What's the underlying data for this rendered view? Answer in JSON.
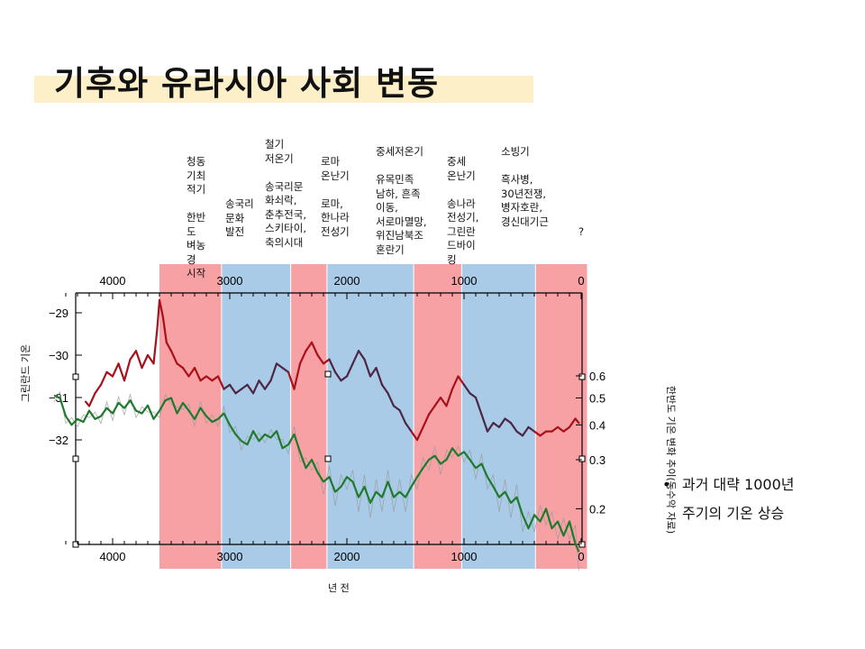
{
  "title": "기후와 유라시아 사회 변동",
  "eras": [
    {
      "id": "era-bronze-cold",
      "label": "청동\n기최\n적기\n\n한반\n도\n벼농\n경\n시작"
    },
    {
      "id": "era-songguk",
      "label": "송국리\n문화\n발전"
    },
    {
      "id": "era-iron-cold",
      "label": "철기\n저온기\n\n송국리문\n화쇠락,\n춘추전국,\n스키타이,\n축의시대"
    },
    {
      "id": "era-roman-warm",
      "label": "로마\n온난기\n\n로마,\n한나라\n전성기"
    },
    {
      "id": "era-medieval-cold",
      "label": "중세저온기\n\n유목민족\n남하, 흔족\n이동,\n서로마멸망,\n위진남북조\n혼란기"
    },
    {
      "id": "era-medieval-warm",
      "label": "중세\n온난기\n\n송나라\n전성기,\n그린란\n드바이\n킹"
    },
    {
      "id": "era-little-ice",
      "label": "소빙기\n\n흑사병,\n30년전쟁,\n병자호란,\n경신대기근"
    },
    {
      "id": "era-future",
      "label": "?"
    }
  ],
  "axis": {
    "left_label": "그린란드 기온",
    "right_label": "한반도 기온 변화 추이(동수악 자료)",
    "x_label": "년 전"
  },
  "notes": [
    "과거 대략 1000년",
    "주기의 기온 상승"
  ],
  "colors": {
    "warm": "#f7a1a4",
    "cold": "#a9cbe8",
    "greenland_warm": "#a8101a",
    "greenland_cold": "#4b2745",
    "korea": "#1f7a2e",
    "korea_raw": "#9a9a9a"
  },
  "chart_data": {
    "type": "line",
    "x_unit": "years before present",
    "xlim": [
      4500,
      -50
    ],
    "x_ticks": [
      4000,
      3000,
      2000,
      1000,
      0
    ],
    "left_axis": {
      "ylim": [
        -32.9,
        -28.6
      ],
      "ticks": [
        -29,
        -30,
        -31,
        -32
      ]
    },
    "right_axis": {
      "ticks": [
        0.6,
        0.5,
        0.4,
        0.3,
        0.2
      ]
    },
    "periods": [
      {
        "kind": "warm",
        "from": 3600,
        "to": 3070
      },
      {
        "kind": "cold",
        "from": 3070,
        "to": 2480
      },
      {
        "kind": "warm",
        "from": 2480,
        "to": 2170
      },
      {
        "kind": "cold",
        "from": 2170,
        "to": 1430
      },
      {
        "kind": "warm",
        "from": 1430,
        "to": 1020
      },
      {
        "kind": "cold",
        "from": 1020,
        "to": 390
      },
      {
        "kind": "warm",
        "from": 390,
        "to": -50
      }
    ],
    "series": [
      {
        "id": "greenland",
        "x": [
          4230,
          4200,
          4150,
          4100,
          4050,
          4000,
          3950,
          3900,
          3850,
          3800,
          3750,
          3700,
          3650,
          3620,
          3600,
          3570,
          3540,
          3500,
          3450,
          3400,
          3350,
          3300,
          3250,
          3200,
          3150,
          3100,
          3050,
          3000,
          2950,
          2900,
          2850,
          2800,
          2750,
          2700,
          2650,
          2600,
          2550,
          2500,
          2450,
          2400,
          2350,
          2300,
          2250,
          2200,
          2150,
          2100,
          2050,
          2000,
          1950,
          1900,
          1850,
          1800,
          1750,
          1700,
          1650,
          1600,
          1550,
          1500,
          1450,
          1400,
          1350,
          1300,
          1250,
          1200,
          1150,
          1100,
          1050,
          1000,
          950,
          900,
          850,
          800,
          750,
          700,
          650,
          600,
          550,
          500,
          450,
          400,
          350,
          300,
          250,
          200,
          150,
          100,
          50,
          20
        ],
        "y": [
          -31.1,
          -31.2,
          -30.9,
          -30.7,
          -30.4,
          -30.5,
          -30.2,
          -30.6,
          -30.1,
          -29.9,
          -30.3,
          -30.0,
          -30.2,
          -29.4,
          -28.7,
          -29.1,
          -29.7,
          -29.9,
          -30.2,
          -30.3,
          -30.5,
          -30.3,
          -30.6,
          -30.5,
          -30.6,
          -30.5,
          -30.8,
          -30.7,
          -30.9,
          -30.8,
          -30.7,
          -30.9,
          -30.6,
          -30.8,
          -30.6,
          -30.2,
          -30.3,
          -30.4,
          -30.8,
          -30.2,
          -29.9,
          -29.7,
          -30.0,
          -30.2,
          -30.1,
          -30.4,
          -30.6,
          -30.5,
          -30.2,
          -29.9,
          -30.1,
          -30.5,
          -30.3,
          -30.7,
          -30.9,
          -31.2,
          -31.3,
          -31.6,
          -31.8,
          -32.0,
          -31.7,
          -31.4,
          -31.2,
          -31.0,
          -31.2,
          -30.8,
          -30.5,
          -30.7,
          -30.9,
          -31.0,
          -31.4,
          -31.8,
          -31.6,
          -31.7,
          -31.5,
          -31.6,
          -31.8,
          -31.9,
          -31.7,
          -31.8,
          -31.9,
          -31.8,
          -31.8,
          -31.7,
          -31.8,
          -31.7,
          -31.5,
          -31.6
        ]
      },
      {
        "id": "korea",
        "x": [
          4500,
          4450,
          4400,
          4350,
          4300,
          4250,
          4200,
          4150,
          4100,
          4050,
          4000,
          3950,
          3900,
          3850,
          3800,
          3750,
          3700,
          3650,
          3600,
          3550,
          3500,
          3450,
          3400,
          3350,
          3300,
          3250,
          3200,
          3150,
          3100,
          3050,
          3000,
          2950,
          2900,
          2850,
          2800,
          2750,
          2700,
          2650,
          2600,
          2550,
          2500,
          2450,
          2400,
          2350,
          2300,
          2250,
          2200,
          2150,
          2100,
          2050,
          2000,
          1950,
          1900,
          1850,
          1800,
          1750,
          1700,
          1650,
          1600,
          1550,
          1500,
          1450,
          1400,
          1350,
          1300,
          1250,
          1200,
          1150,
          1100,
          1050,
          1000,
          950,
          900,
          850,
          800,
          750,
          700,
          650,
          600,
          550,
          500,
          450,
          400,
          350,
          300,
          250,
          200,
          150,
          100,
          50,
          20
        ],
        "y": [
          0.51,
          0.5,
          0.43,
          0.4,
          0.42,
          0.41,
          0.45,
          0.42,
          0.43,
          0.46,
          0.44,
          0.48,
          0.46,
          0.49,
          0.45,
          0.44,
          0.47,
          0.42,
          0.45,
          0.49,
          0.5,
          0.44,
          0.48,
          0.45,
          0.42,
          0.46,
          0.43,
          0.41,
          0.42,
          0.44,
          0.4,
          0.37,
          0.35,
          0.34,
          0.38,
          0.35,
          0.37,
          0.36,
          0.38,
          0.33,
          0.34,
          0.37,
          0.32,
          0.28,
          0.3,
          0.27,
          0.25,
          0.26,
          0.23,
          0.24,
          0.26,
          0.25,
          0.22,
          0.24,
          0.21,
          0.23,
          0.22,
          0.25,
          0.22,
          0.23,
          0.22,
          0.24,
          0.26,
          0.28,
          0.3,
          0.31,
          0.29,
          0.3,
          0.33,
          0.31,
          0.32,
          0.3,
          0.28,
          0.29,
          0.26,
          0.24,
          0.22,
          0.23,
          0.21,
          0.22,
          0.19,
          0.17,
          0.19,
          0.18,
          0.2,
          0.17,
          0.18,
          0.16,
          0.18,
          0.15,
          0.14
        ]
      }
    ]
  }
}
